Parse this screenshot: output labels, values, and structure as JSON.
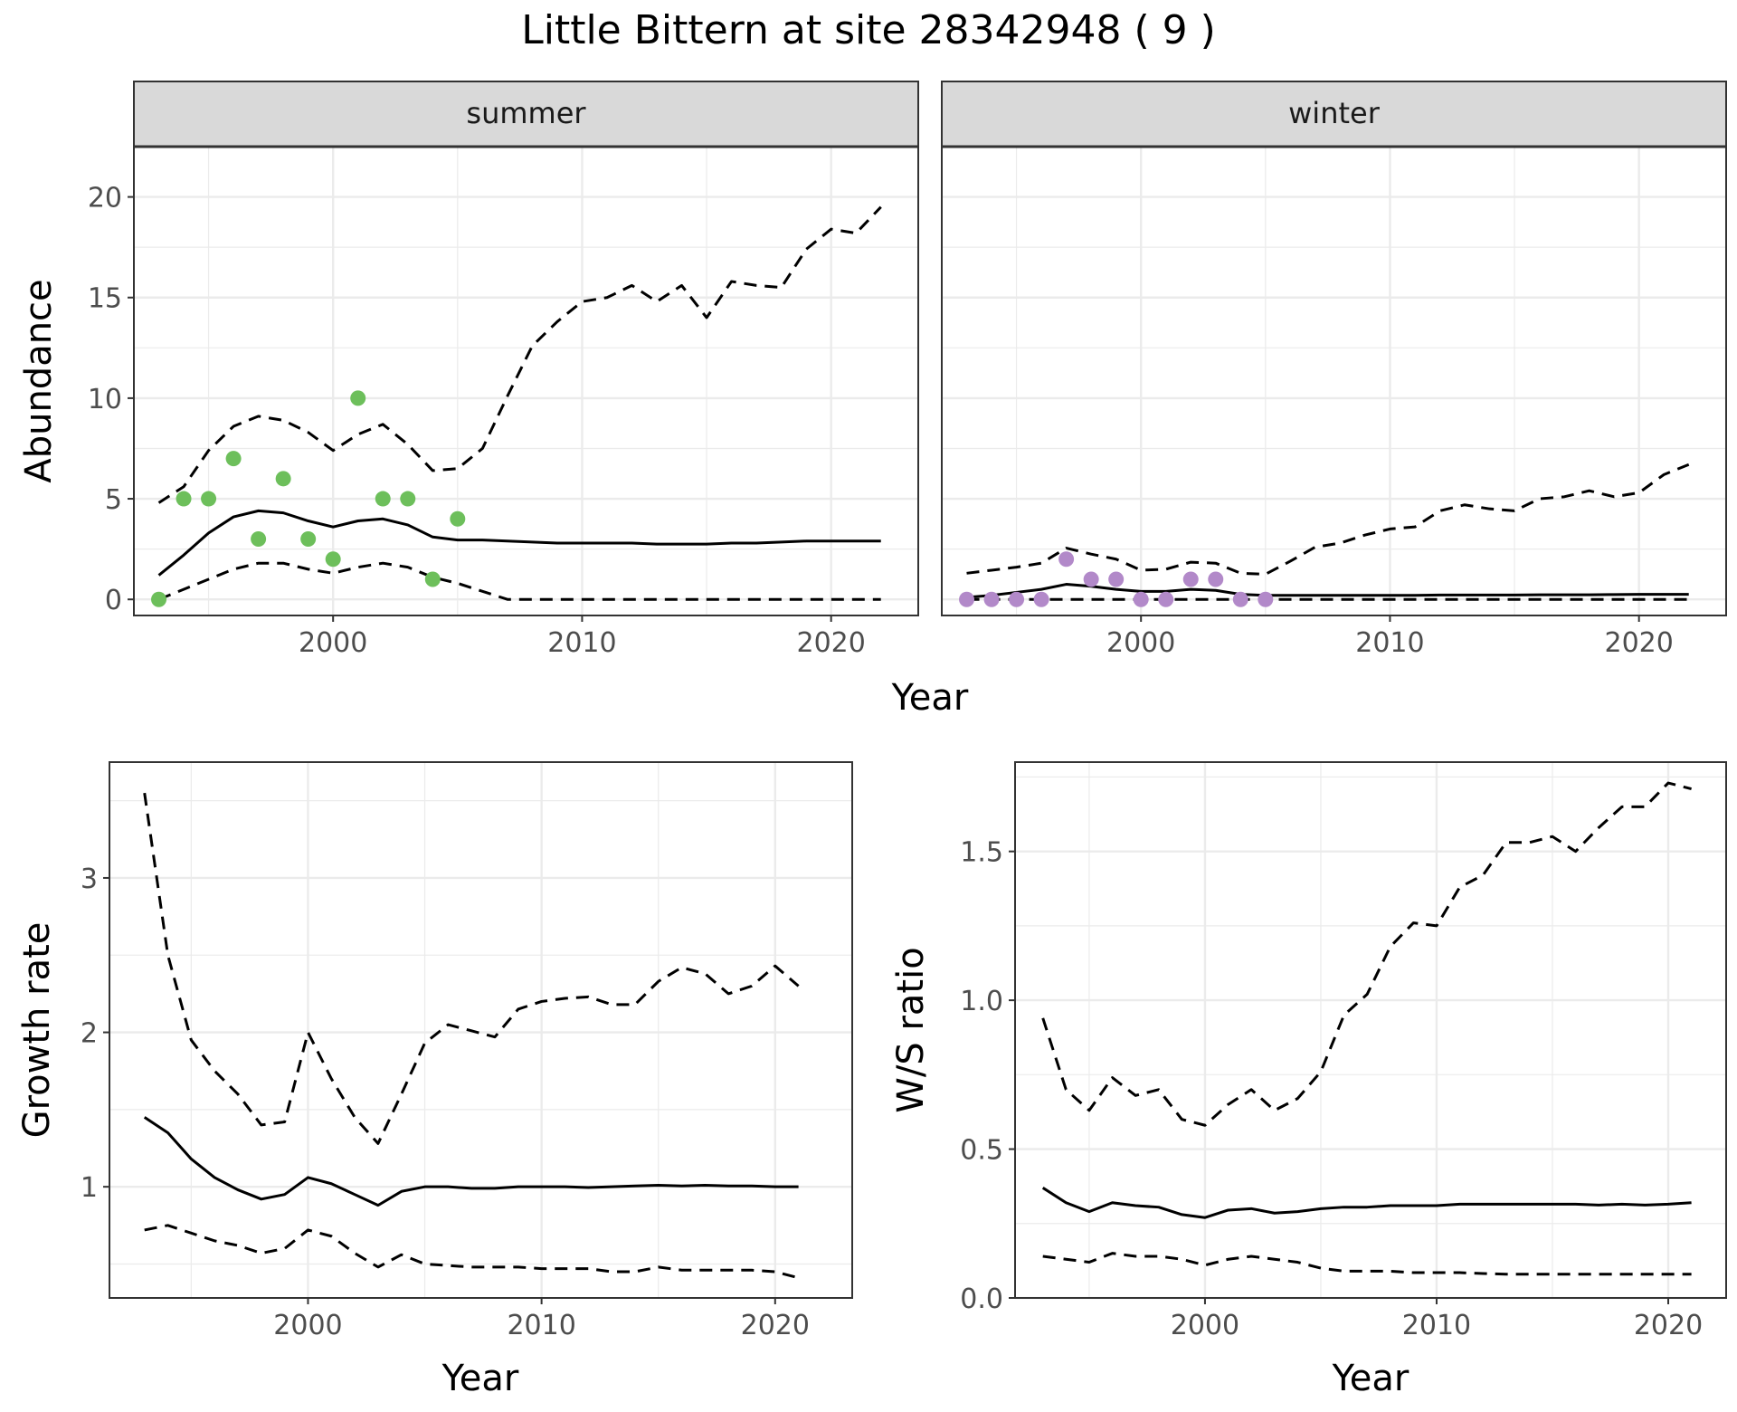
{
  "title": "Little Bittern at site 28342948 ( 9 )",
  "colors": {
    "summer_points": "#6dbf5b",
    "winter_points": "#b289c9",
    "line": "#000000",
    "grid": "#ebebeb",
    "strip": "#d9d9d9"
  },
  "chart_data": [
    {
      "type": "line",
      "panel": "abundance",
      "xlabel": "Year",
      "ylabel": "Abundance",
      "ylim": [
        -0.8,
        22.5
      ],
      "xlim": [
        1992,
        2023.5
      ],
      "yticks": [
        0,
        5,
        10,
        15,
        20
      ],
      "ytick_labels": [
        "0",
        "5",
        "10",
        "15",
        "20"
      ],
      "xticks": [
        2000,
        2010,
        2020
      ],
      "xtick_labels": [
        "2000",
        "2010",
        "2020"
      ],
      "grid": true,
      "facets": [
        {
          "label": "summer",
          "point_color": "#6dbf5b",
          "observed": {
            "x": [
              1993,
              1994,
              1995,
              1996,
              1997,
              1998,
              1999,
              2000,
              2001,
              2002,
              2003,
              2004,
              2005
            ],
            "y": [
              0,
              5,
              5,
              7,
              3,
              6,
              3,
              2,
              10,
              5,
              5,
              1,
              4
            ]
          },
          "fit": {
            "x": [
              1993,
              1994,
              1995,
              1996,
              1997,
              1998,
              1999,
              2000,
              2001,
              2002,
              2003,
              2004,
              2005,
              2006,
              2007,
              2008,
              2009,
              2010,
              2011,
              2012,
              2013,
              2014,
              2015,
              2016,
              2017,
              2018,
              2019,
              2020,
              2021,
              2022
            ],
            "y": [
              1.2,
              2.2,
              3.3,
              4.1,
              4.4,
              4.3,
              3.9,
              3.6,
              3.9,
              4.0,
              3.7,
              3.1,
              2.95,
              2.95,
              2.9,
              2.85,
              2.8,
              2.8,
              2.8,
              2.8,
              2.75,
              2.75,
              2.75,
              2.8,
              2.8,
              2.85,
              2.9,
              2.9,
              2.9,
              2.9
            ]
          },
          "upper": {
            "x": [
              1993,
              1994,
              1995,
              1996,
              1997,
              1998,
              1999,
              2000,
              2001,
              2002,
              2003,
              2004,
              2005,
              2006,
              2007,
              2008,
              2009,
              2010,
              2011,
              2012,
              2013,
              2014,
              2015,
              2016,
              2017,
              2018,
              2019,
              2020,
              2021,
              2022
            ],
            "y": [
              4.8,
              5.6,
              7.4,
              8.6,
              9.1,
              8.9,
              8.3,
              7.4,
              8.2,
              8.7,
              7.7,
              6.4,
              6.5,
              7.5,
              10.1,
              12.6,
              13.8,
              14.8,
              15.0,
              15.6,
              14.8,
              15.6,
              14.0,
              15.8,
              15.6,
              15.5,
              17.4,
              18.4,
              18.2,
              19.5
            ]
          },
          "lower": {
            "x": [
              1993,
              1994,
              1995,
              1996,
              1997,
              1998,
              1999,
              2000,
              2001,
              2002,
              2003,
              2004,
              2005,
              2006,
              2007,
              2008,
              2009,
              2010,
              2011,
              2012,
              2013,
              2014,
              2015,
              2016,
              2017,
              2018,
              2019,
              2020,
              2021,
              2022
            ],
            "y": [
              0,
              0.5,
              1.0,
              1.5,
              1.8,
              1.8,
              1.5,
              1.3,
              1.6,
              1.8,
              1.6,
              1.1,
              0.8,
              0.4,
              0,
              0,
              0,
              0,
              0,
              0,
              0,
              0,
              0,
              0,
              0,
              0,
              0,
              0,
              0,
              0
            ]
          }
        },
        {
          "label": "winter",
          "point_color": "#b289c9",
          "observed": {
            "x": [
              1993,
              1994,
              1995,
              1996,
              1997,
              1998,
              1999,
              2000,
              2001,
              2002,
              2003,
              2004,
              2005
            ],
            "y": [
              0,
              0,
              0,
              0,
              2,
              1,
              1,
              0,
              0,
              1,
              1,
              0,
              0
            ]
          },
          "fit": {
            "x": [
              1993,
              1994,
              1995,
              1996,
              1997,
              1998,
              1999,
              2000,
              2001,
              2002,
              2003,
              2004,
              2005,
              2006,
              2007,
              2008,
              2009,
              2010,
              2011,
              2012,
              2013,
              2014,
              2015,
              2016,
              2017,
              2018,
              2019,
              2020,
              2021,
              2022
            ],
            "y": [
              0.1,
              0.2,
              0.35,
              0.5,
              0.75,
              0.65,
              0.5,
              0.4,
              0.4,
              0.5,
              0.45,
              0.25,
              0.2,
              0.2,
              0.2,
              0.2,
              0.2,
              0.2,
              0.2,
              0.22,
              0.22,
              0.22,
              0.22,
              0.23,
              0.23,
              0.23,
              0.24,
              0.25,
              0.25,
              0.25
            ]
          },
          "upper": {
            "x": [
              1993,
              1994,
              1995,
              1996,
              1997,
              1998,
              1999,
              2000,
              2001,
              2002,
              2003,
              2004,
              2005,
              2006,
              2007,
              2008,
              2009,
              2010,
              2011,
              2012,
              2013,
              2014,
              2015,
              2016,
              2017,
              2018,
              2019,
              2020,
              2021,
              2022
            ],
            "y": [
              1.3,
              1.45,
              1.6,
              1.8,
              2.55,
              2.25,
              2.0,
              1.45,
              1.5,
              1.85,
              1.8,
              1.3,
              1.25,
              1.9,
              2.6,
              2.8,
              3.2,
              3.5,
              3.6,
              4.4,
              4.7,
              4.5,
              4.4,
              5.0,
              5.1,
              5.4,
              5.1,
              5.3,
              6.2,
              6.7
            ]
          },
          "lower": {
            "x": [
              1993,
              1994,
              1995,
              1996,
              1997,
              1998,
              1999,
              2000,
              2001,
              2002,
              2003,
              2004,
              2005,
              2006,
              2007,
              2008,
              2009,
              2010,
              2011,
              2012,
              2013,
              2014,
              2015,
              2016,
              2017,
              2018,
              2019,
              2020,
              2021,
              2022
            ],
            "y": [
              0,
              0,
              0,
              0,
              0,
              0,
              0,
              0,
              0,
              0,
              0,
              0,
              0,
              0,
              0,
              0,
              0,
              0,
              0,
              0,
              0,
              0,
              0,
              0,
              0,
              0,
              0,
              0,
              0,
              0
            ]
          }
        }
      ]
    },
    {
      "type": "line",
      "panel": "growth",
      "xlabel": "Year",
      "ylabel": "Growth rate",
      "ylim": [
        0.28,
        3.75
      ],
      "xlim": [
        1991.5,
        2023.3
      ],
      "yticks": [
        1,
        2,
        3
      ],
      "ytick_labels": [
        "1",
        "2",
        "3"
      ],
      "xticks": [
        2000,
        2010,
        2020
      ],
      "xtick_labels": [
        "2000",
        "2010",
        "2020"
      ],
      "grid": true,
      "fit": {
        "x": [
          1993,
          1994,
          1995,
          1996,
          1997,
          1998,
          1999,
          2000,
          2001,
          2002,
          2003,
          2004,
          2005,
          2006,
          2007,
          2008,
          2009,
          2010,
          2011,
          2012,
          2013,
          2014,
          2015,
          2016,
          2017,
          2018,
          2019,
          2020,
          2021
        ],
        "y": [
          1.45,
          1.35,
          1.18,
          1.06,
          0.98,
          0.92,
          0.95,
          1.06,
          1.02,
          0.95,
          0.88,
          0.97,
          1.0,
          1.0,
          0.99,
          0.99,
          1.0,
          1.0,
          1.0,
          0.995,
          1.0,
          1.005,
          1.01,
          1.005,
          1.01,
          1.005,
          1.005,
          1.0,
          1.0
        ]
      },
      "upper": {
        "x": [
          1993,
          1994,
          1995,
          1996,
          1997,
          1998,
          1999,
          2000,
          2001,
          2002,
          2003,
          2004,
          2005,
          2006,
          2007,
          2008,
          2009,
          2010,
          2011,
          2012,
          2013,
          2014,
          2015,
          2016,
          2017,
          2018,
          2019,
          2020,
          2021
        ],
        "y": [
          3.55,
          2.5,
          1.95,
          1.75,
          1.6,
          1.4,
          1.42,
          2.0,
          1.7,
          1.45,
          1.28,
          1.6,
          1.93,
          2.05,
          2.01,
          1.97,
          2.15,
          2.2,
          2.22,
          2.23,
          2.18,
          2.18,
          2.33,
          2.42,
          2.38,
          2.25,
          2.3,
          2.43,
          2.3
        ]
      },
      "lower": {
        "x": [
          1993,
          1994,
          1995,
          1996,
          1997,
          1998,
          1999,
          2000,
          2001,
          2002,
          2003,
          2004,
          2005,
          2006,
          2007,
          2008,
          2009,
          2010,
          2011,
          2012,
          2013,
          2014,
          2015,
          2016,
          2017,
          2018,
          2019,
          2020,
          2021
        ],
        "y": [
          0.72,
          0.75,
          0.7,
          0.65,
          0.62,
          0.57,
          0.6,
          0.72,
          0.68,
          0.57,
          0.48,
          0.56,
          0.5,
          0.49,
          0.48,
          0.48,
          0.48,
          0.47,
          0.47,
          0.47,
          0.45,
          0.45,
          0.48,
          0.46,
          0.46,
          0.46,
          0.46,
          0.45,
          0.41
        ]
      }
    },
    {
      "type": "line",
      "panel": "ws_ratio",
      "xlabel": "Year",
      "ylabel": "W/S ratio",
      "ylim": [
        0,
        1.8
      ],
      "xlim": [
        1991.8,
        2022.5
      ],
      "yticks": [
        0,
        0.5,
        1,
        1.5
      ],
      "ytick_labels": [
        "0.0",
        "0.5",
        "1.0",
        "1.5"
      ],
      "xticks": [
        2000,
        2010,
        2020
      ],
      "xtick_labels": [
        "2000",
        "2010",
        "2020"
      ],
      "grid": true,
      "fit": {
        "x": [
          1993,
          1994,
          1995,
          1996,
          1997,
          1998,
          1999,
          2000,
          2001,
          2002,
          2003,
          2004,
          2005,
          2006,
          2007,
          2008,
          2009,
          2010,
          2011,
          2012,
          2013,
          2014,
          2015,
          2016,
          2017,
          2018,
          2019,
          2020,
          2021
        ],
        "y": [
          0.37,
          0.32,
          0.29,
          0.32,
          0.31,
          0.305,
          0.28,
          0.27,
          0.295,
          0.3,
          0.285,
          0.29,
          0.3,
          0.305,
          0.305,
          0.31,
          0.31,
          0.31,
          0.315,
          0.315,
          0.315,
          0.315,
          0.315,
          0.315,
          0.312,
          0.315,
          0.312,
          0.315,
          0.32
        ]
      },
      "upper": {
        "x": [
          1993,
          1994,
          1995,
          1996,
          1997,
          1998,
          1999,
          2000,
          2001,
          2002,
          2003,
          2004,
          2005,
          2006,
          2007,
          2008,
          2009,
          2010,
          2011,
          2012,
          2013,
          2014,
          2015,
          2016,
          2017,
          2018,
          2019,
          2020,
          2021
        ],
        "y": [
          0.94,
          0.7,
          0.63,
          0.74,
          0.68,
          0.7,
          0.6,
          0.58,
          0.65,
          0.7,
          0.63,
          0.67,
          0.76,
          0.95,
          1.02,
          1.18,
          1.26,
          1.25,
          1.38,
          1.42,
          1.53,
          1.53,
          1.55,
          1.5,
          1.58,
          1.65,
          1.65,
          1.73,
          1.71
        ]
      },
      "lower": {
        "x": [
          1993,
          1994,
          1995,
          1996,
          1997,
          1998,
          1999,
          2000,
          2001,
          2002,
          2003,
          2004,
          2005,
          2006,
          2007,
          2008,
          2009,
          2010,
          2011,
          2012,
          2013,
          2014,
          2015,
          2016,
          2017,
          2018,
          2019,
          2020,
          2021
        ],
        "y": [
          0.14,
          0.13,
          0.12,
          0.15,
          0.14,
          0.14,
          0.13,
          0.11,
          0.13,
          0.14,
          0.13,
          0.12,
          0.1,
          0.09,
          0.09,
          0.09,
          0.085,
          0.085,
          0.085,
          0.082,
          0.08,
          0.08,
          0.08,
          0.08,
          0.08,
          0.08,
          0.08,
          0.08,
          0.08
        ]
      }
    }
  ]
}
